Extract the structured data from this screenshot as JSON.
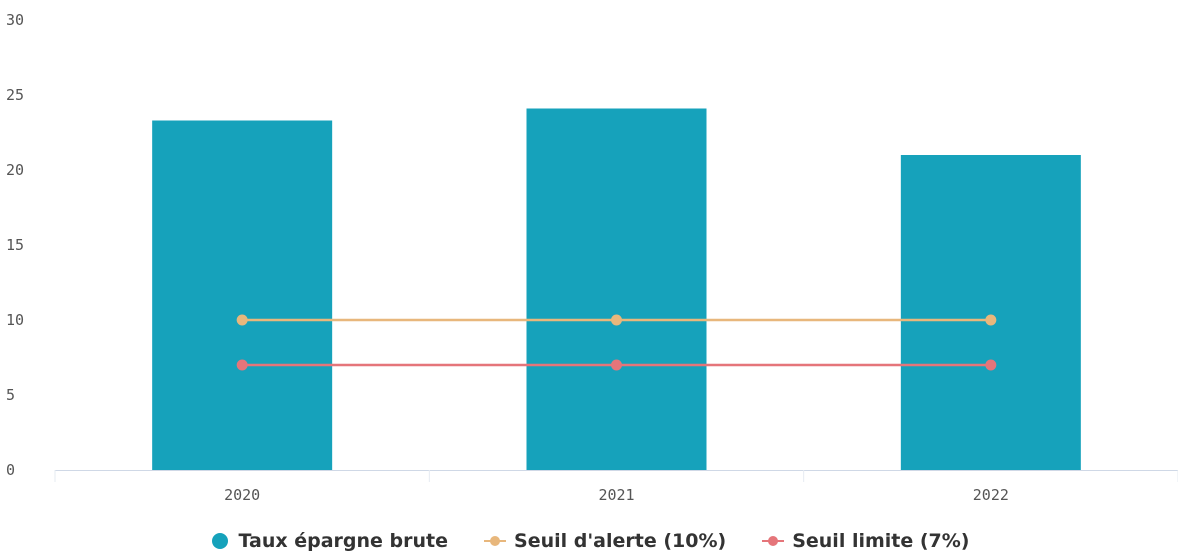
{
  "chart_data": {
    "type": "bar",
    "categories": [
      "2020",
      "2021",
      "2022"
    ],
    "ylim": [
      0,
      30
    ],
    "yticks": [
      0,
      5,
      10,
      15,
      20,
      25,
      30
    ],
    "series": [
      {
        "name": "Taux épargne brute",
        "kind": "bar",
        "color": "#16a2bb",
        "values": [
          23.3,
          24.1,
          21.0
        ]
      },
      {
        "name": "Seuil d'alerte (10%)",
        "kind": "line",
        "color": "#e8b77c",
        "values": [
          10,
          10,
          10
        ]
      },
      {
        "name": "Seuil limite (7%)",
        "kind": "line",
        "color": "#e5757a",
        "values": [
          7,
          7,
          7
        ]
      }
    ],
    "legend_position": "bottom",
    "grid": false
  }
}
